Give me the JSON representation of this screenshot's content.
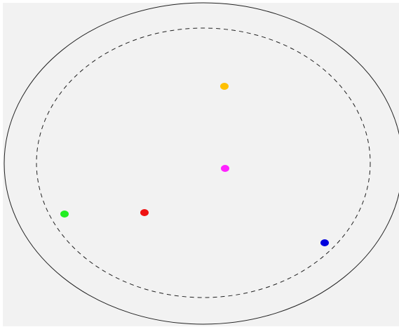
{
  "colors": {
    "page_background": "#ffffff",
    "panel_background": "#f2f2f2",
    "outer_ellipse_stroke": "#222222",
    "inner_ellipse_stroke": "#222222"
  },
  "shapes": {
    "outer_ellipse": {
      "line_style": "solid"
    },
    "inner_ellipse": {
      "line_style": "dashed"
    }
  },
  "dots": [
    {
      "name": "yellow-dot",
      "color": "#ffc000"
    },
    {
      "name": "magenta-dot",
      "color": "#ff22ff"
    },
    {
      "name": "green-dot",
      "color": "#22ee22"
    },
    {
      "name": "red-dot",
      "color": "#ee1111"
    },
    {
      "name": "blue-dot",
      "color": "#0000dd"
    }
  ]
}
